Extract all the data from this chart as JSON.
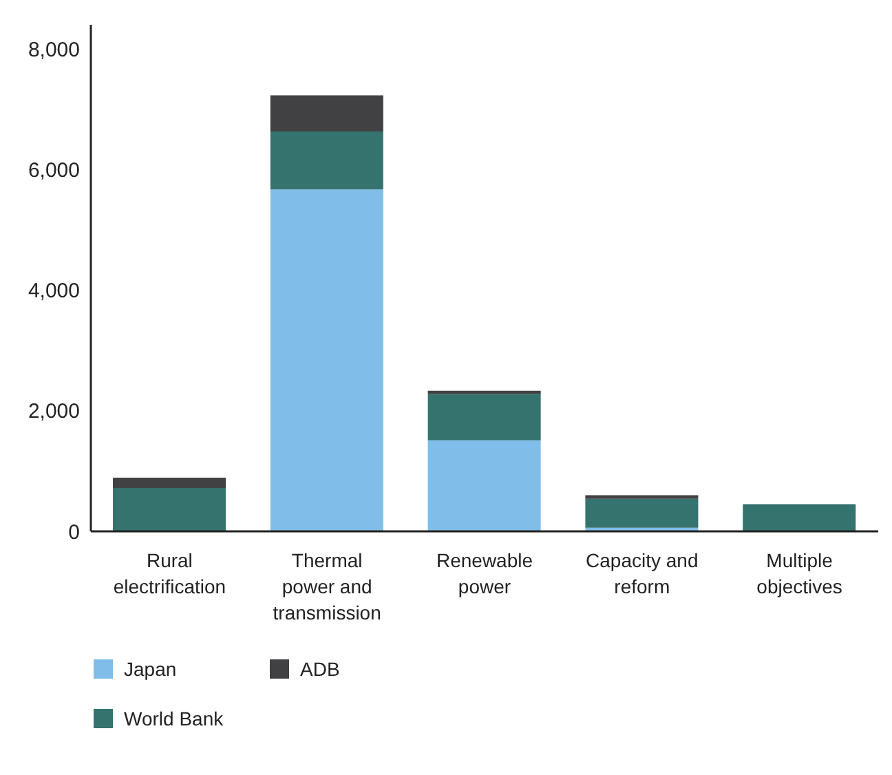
{
  "chart_data": {
    "type": "bar",
    "stacked": true,
    "categories": [
      "Rural electrification",
      "Thermal power and transmission",
      "Renewable power",
      "Capacity and reform",
      "Multiple objectives"
    ],
    "series": [
      {
        "name": "Japan",
        "color": "#80bde8",
        "values": [
          0,
          5670,
          1510,
          60,
          0
        ]
      },
      {
        "name": "World Bank",
        "color": "#35736f",
        "values": [
          720,
          960,
          770,
          480,
          450
        ]
      },
      {
        "name": "ADB",
        "color": "#414143",
        "values": [
          170,
          600,
          50,
          60,
          0
        ]
      }
    ],
    "ylim": [
      0,
      8400
    ],
    "yticks": [
      0,
      {
        "value": 2000,
        "label": "2,000"
      },
      {
        "value": 4000,
        "label": "4,000"
      },
      {
        "value": 6000,
        "label": "6,000"
      },
      {
        "value": 8000,
        "label": "8,000"
      }
    ],
    "grid": false,
    "legend": "bottom"
  }
}
